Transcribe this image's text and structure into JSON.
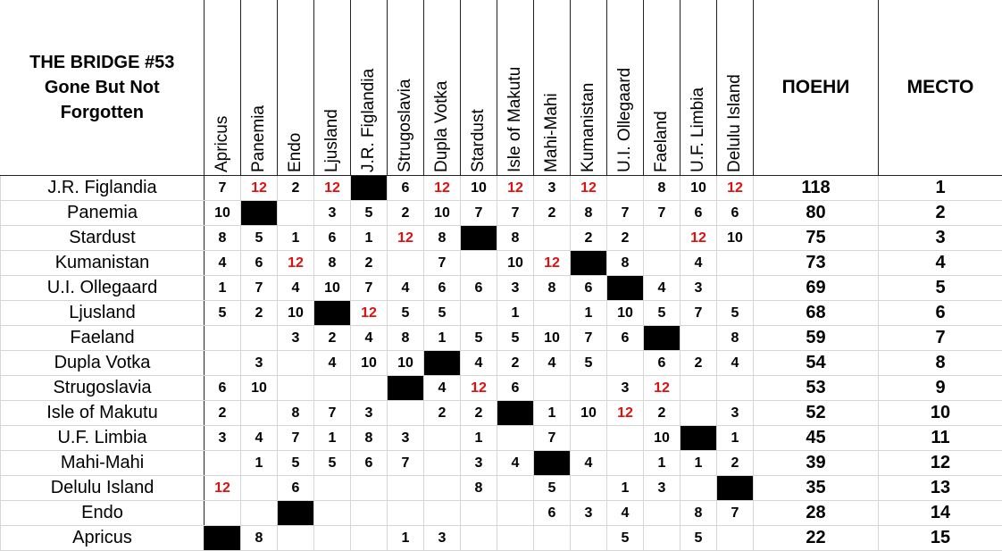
{
  "header": {
    "title": "THE BRIDGE #53",
    "subtitle": "Gone But Not Forgotten",
    "points": "ПОЕНИ",
    "place": "МЕСТО"
  },
  "voters": [
    "Apricus",
    "Panemia",
    "Endo",
    "Ljusland",
    "J.R. Figlandia",
    "Strugoslavia",
    "Dupla Votka",
    "Stardust",
    "Isle of Makutu",
    "Mahi-Mahi",
    "Kumanistan",
    "U.I. Ollegaard",
    "Faeland",
    "U.F. Limbia",
    "Delulu Island"
  ],
  "rows": [
    {
      "country": "J.R. Figlandia",
      "scores": [
        7,
        12,
        2,
        12,
        null,
        6,
        12,
        10,
        12,
        3,
        12,
        null,
        8,
        10,
        12
      ],
      "total": 118,
      "place": 1
    },
    {
      "country": "Panemia",
      "scores": [
        10,
        null,
        null,
        3,
        5,
        2,
        10,
        7,
        7,
        2,
        8,
        7,
        7,
        6,
        6
      ],
      "total": 80,
      "place": 2
    },
    {
      "country": "Stardust",
      "scores": [
        8,
        5,
        1,
        6,
        1,
        12,
        8,
        null,
        8,
        null,
        2,
        2,
        null,
        12,
        10
      ],
      "total": 75,
      "place": 3
    },
    {
      "country": "Kumanistan",
      "scores": [
        4,
        6,
        12,
        8,
        2,
        null,
        7,
        null,
        10,
        12,
        null,
        8,
        null,
        4,
        null
      ],
      "total": 73,
      "place": 4
    },
    {
      "country": "U.I. Ollegaard",
      "scores": [
        1,
        7,
        4,
        10,
        7,
        4,
        6,
        6,
        3,
        8,
        6,
        null,
        4,
        3,
        null
      ],
      "total": 69,
      "place": 5
    },
    {
      "country": "Ljusland",
      "scores": [
        5,
        2,
        10,
        null,
        12,
        5,
        5,
        null,
        1,
        null,
        1,
        10,
        5,
        7,
        5
      ],
      "total": 68,
      "place": 6
    },
    {
      "country": "Faeland",
      "scores": [
        null,
        null,
        3,
        2,
        4,
        8,
        1,
        5,
        5,
        10,
        7,
        6,
        null,
        null,
        8
      ],
      "total": 59,
      "place": 7
    },
    {
      "country": "Dupla Votka",
      "scores": [
        null,
        3,
        null,
        4,
        10,
        10,
        null,
        4,
        2,
        4,
        5,
        null,
        6,
        2,
        4
      ],
      "total": 54,
      "place": 8
    },
    {
      "country": "Strugoslavia",
      "scores": [
        6,
        10,
        null,
        null,
        null,
        null,
        4,
        12,
        6,
        null,
        null,
        3,
        12,
        null,
        null
      ],
      "total": 53,
      "place": 9
    },
    {
      "country": "Isle of Makutu",
      "scores": [
        2,
        null,
        8,
        7,
        3,
        null,
        2,
        2,
        null,
        1,
        10,
        12,
        2,
        null,
        3
      ],
      "total": 52,
      "place": 10
    },
    {
      "country": "U.F. Limbia",
      "scores": [
        3,
        4,
        7,
        1,
        8,
        3,
        null,
        1,
        null,
        7,
        null,
        null,
        10,
        null,
        1
      ],
      "total": 45,
      "place": 11
    },
    {
      "country": "Mahi-Mahi",
      "scores": [
        null,
        1,
        5,
        5,
        6,
        7,
        null,
        3,
        4,
        null,
        4,
        null,
        1,
        1,
        2
      ],
      "total": 39,
      "place": 12
    },
    {
      "country": "Delulu Island",
      "scores": [
        12,
        null,
        6,
        null,
        null,
        null,
        null,
        8,
        null,
        5,
        null,
        1,
        3,
        null,
        null
      ],
      "total": 35,
      "place": 13
    },
    {
      "country": "Endo",
      "scores": [
        null,
        null,
        null,
        null,
        null,
        null,
        null,
        null,
        null,
        6,
        3,
        4,
        null,
        8,
        7
      ],
      "total": 28,
      "place": 14
    },
    {
      "country": "Apricus",
      "scores": [
        null,
        8,
        null,
        null,
        null,
        1,
        3,
        null,
        null,
        null,
        null,
        5,
        null,
        5,
        null
      ],
      "total": 22,
      "place": 15
    }
  ]
}
